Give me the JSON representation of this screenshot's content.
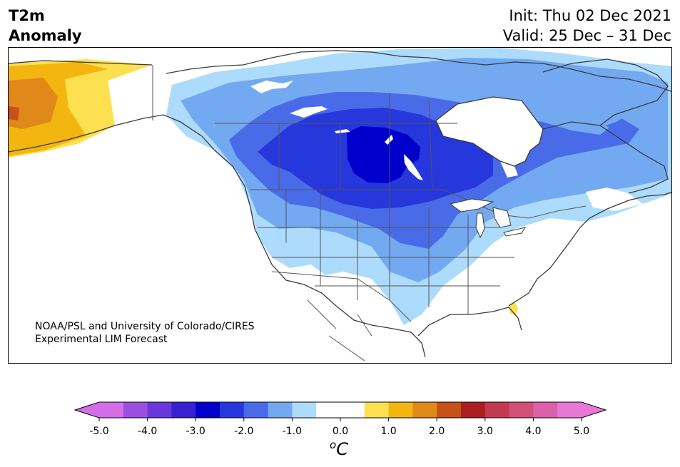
{
  "header": {
    "title_line1": "T2m",
    "title_line2": "Anomaly",
    "init": "Init: Thu 02 Dec 2021",
    "valid": "Valid: 25 Dec – 31 Dec"
  },
  "credit": {
    "line1": "NOAA/PSL and University of Colorado/CIRES",
    "line2": "Experimental LIM Forecast"
  },
  "colorbar": {
    "ticks": [
      "-5.0",
      "-4.0",
      "-3.0",
      "-2.0",
      "-1.0",
      "0.0",
      "1.0",
      "2.0",
      "3.0",
      "4.0",
      "5.0"
    ],
    "unit_base": "C",
    "unit_super": "o",
    "colors": [
      "#d36ee8",
      "#9b4fe0",
      "#6a37db",
      "#3a20d1",
      "#0000cd",
      "#2637dc",
      "#4a6be8",
      "#73a9f1",
      "#addbfb",
      "#ffffff",
      "#ffffff",
      "#fde04f",
      "#f3b50f",
      "#e0881a",
      "#c65119",
      "#a91f1f",
      "#c23a4f",
      "#d05079",
      "#db62a8",
      "#e878d6"
    ]
  },
  "map": {
    "region": "North America",
    "anomaly_colors": {
      "cold_1": "#addbfb",
      "cold_2": "#73a9f1",
      "cold_3": "#4a6be8",
      "cold_4": "#2637dc",
      "cold_5": "#0000cd",
      "warm_1": "#fde04f",
      "warm_2": "#f3b50f",
      "warm_3": "#e0881a",
      "warm_4": "#c65119"
    }
  }
}
